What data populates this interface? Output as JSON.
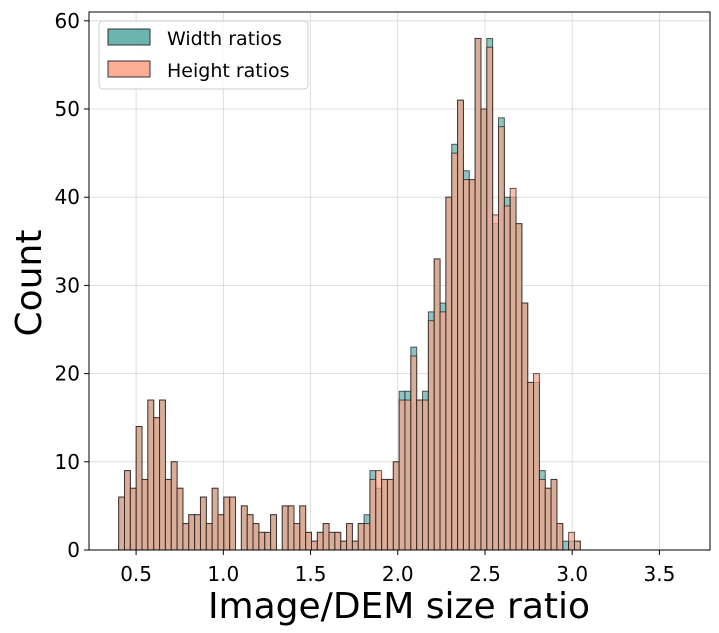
{
  "chart_data": {
    "type": "histogram",
    "title": "",
    "xlabel": "Image/DEM size ratio",
    "ylabel": "Count",
    "xlim": [
      0.23,
      3.79
    ],
    "ylim": [
      0,
      61
    ],
    "xticks": [
      0.5,
      1.0,
      1.5,
      2.0,
      2.5,
      3.0,
      3.5
    ],
    "xtick_labels": [
      "0.5",
      "1.0",
      "1.5",
      "2.0",
      "2.5",
      "3.0",
      "3.5"
    ],
    "yticks": [
      0,
      10,
      20,
      30,
      40,
      50,
      60
    ],
    "ytick_labels": [
      "0",
      "10",
      "20",
      "30",
      "40",
      "50",
      "60"
    ],
    "grid": true,
    "legend_position": "top-left",
    "bin_start": 0.4,
    "bin_width": 0.0335,
    "series": [
      {
        "name": "Width ratios",
        "color": "#5aaba6",
        "values": [
          6,
          9,
          7,
          14,
          8,
          17,
          15,
          17,
          8,
          10,
          7,
          3,
          4,
          4,
          6,
          3,
          7,
          4,
          6,
          6,
          0,
          5,
          4,
          3,
          2,
          2,
          4,
          0,
          5,
          5,
          3,
          5,
          2,
          1,
          2,
          3,
          2,
          2,
          1,
          3,
          1,
          3,
          4,
          9,
          7,
          8,
          8,
          10,
          18,
          18,
          23,
          17,
          18,
          27,
          33,
          28,
          40,
          46,
          51,
          43,
          42,
          58,
          50,
          58,
          37,
          49,
          40,
          40,
          37,
          28,
          19,
          19,
          9,
          7,
          8,
          3,
          1,
          1,
          1
        ]
      },
      {
        "name": "Height ratios",
        "color": "#fca487",
        "values": [
          6,
          9,
          7,
          14,
          8,
          17,
          15,
          17,
          8,
          10,
          7,
          3,
          4,
          4,
          6,
          3,
          7,
          4,
          6,
          6,
          0,
          5,
          4,
          3,
          2,
          2,
          4,
          0,
          5,
          5,
          3,
          5,
          2,
          1,
          2,
          3,
          2,
          2,
          1,
          3,
          1,
          3,
          3,
          8,
          9,
          8,
          8,
          10,
          17,
          17,
          22,
          17,
          17,
          26,
          33,
          27,
          40,
          45,
          51,
          42,
          42,
          58,
          50,
          57,
          38,
          48,
          39,
          41,
          37,
          28,
          19,
          20,
          8,
          7,
          8,
          3,
          0,
          2,
          1
        ]
      }
    ]
  }
}
